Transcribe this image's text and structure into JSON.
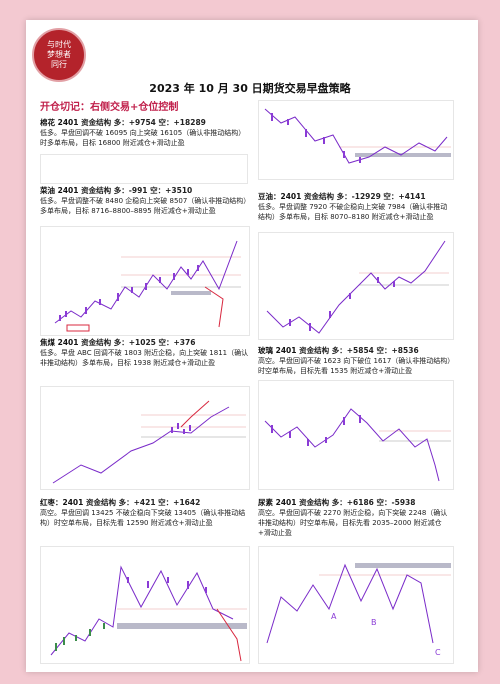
{
  "logo": {
    "line1": "与时代",
    "line2": "梦想者",
    "line3": "同行"
  },
  "title": "2023 年 10 月 30 日期货交易早盘策略",
  "subtitle": "开仓切记：右侧交易+仓位控制",
  "sections": {
    "cotton": {
      "name": "棉花 2401",
      "flow": "资金结构 多：+9754 空：+18289",
      "body": "低多。早盘回调不破 16095 向上突破 16105（确认非推动结构）时多单布局，目标 16800 附近减仓+滑动止盈"
    },
    "soymeal": {
      "name": "豆油：2401",
      "flow": "资金结构 多：-12929 空：+4141",
      "body": "低多。早盘调整 7920 不破企稳向上突破 7984（确认非推动结构）多单布局，目标 8070–8180 附近减仓+滑动止盈"
    },
    "rapeseed": {
      "name": "菜油 2401",
      "flow": "资金结构 多：-991 空：+3510",
      "body": "低多。早盘调整不破 8480 企稳向上突破 8507（确认非推动结构）多单布局，目标 8716–8800–8895 附近减仓+滑动止盈"
    },
    "coke": {
      "name": "焦煤 2401",
      "flow": "资金结构 多：+1025 空：+376",
      "body": "低多。早盘 ABC 回调不破 1803 附近企稳，向上突破 1811（确认非推动结构）多单布局，目标 1938 附近减仓+滑动止盈"
    },
    "glass": {
      "name": "玻璃 2401",
      "flow": "资金结构 多：+5854 空：+8536",
      "body": "高空。早盘回调不破 1623 向下破位 1617（确认非推动结构）时空单布局，目标先看 1535 附近减仓+滑动止盈"
    },
    "dates": {
      "name": "红枣：2401",
      "flow": "资金结构 多：+421 空：+1642",
      "body": "高空。早盘回调 13425 不破企稳向下突破 13405（确认非推动结构）时空单布局，目标先看 12590 附近减仓+滑动止盈"
    },
    "urea": {
      "name": "尿素 2401",
      "flow": "资金结构 多：+6186 空：-5938",
      "body": "高空。早盘回调不破 2270 附近企稳，向下突破 2248（确认非推动结构）时空单布局，目标先看 2035–2000 附近减仓+滑动止盈"
    }
  },
  "colors": {
    "accent": "#c0204b",
    "logo": "#b4232b",
    "candle": "#8a3bd6",
    "trend": "#7a2bc9",
    "target": "#d8283f",
    "stop": "#c23b55",
    "band": "#b9b9c9"
  },
  "chart_icons": {
    "wave_label": "A",
    "c_label": "C",
    "b_label": "B"
  }
}
